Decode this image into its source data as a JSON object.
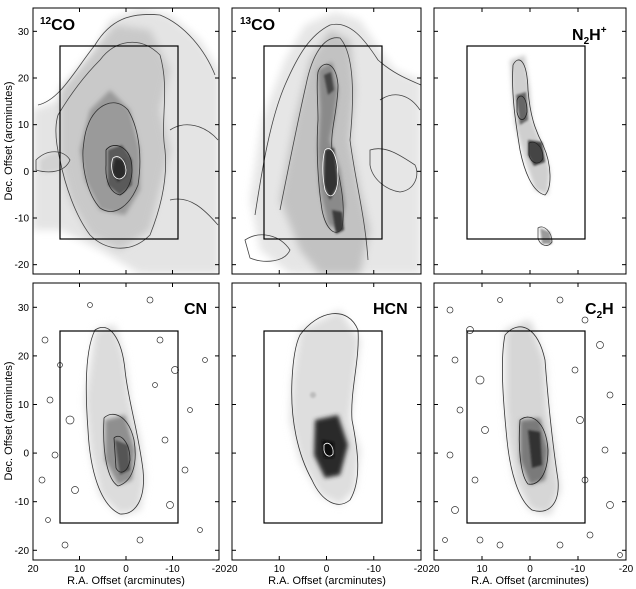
{
  "figure": {
    "panels": [
      {
        "id": "12co",
        "label_prefix": "",
        "label_sup": "12",
        "label_main": "CO",
        "label_sub": "",
        "label_sup_after": ""
      },
      {
        "id": "13co",
        "label_prefix": "",
        "label_sup": "13",
        "label_main": "CO",
        "label_sub": "",
        "label_sup_after": ""
      },
      {
        "id": "n2h",
        "label_prefix": "",
        "label_sup": "",
        "label_main": "N",
        "label_sub": "2",
        "label_tail": "H",
        "label_sup_after": "+"
      },
      {
        "id": "cn",
        "label_prefix": "",
        "label_sup": "",
        "label_main": "CN",
        "label_sub": "",
        "label_sup_after": ""
      },
      {
        "id": "hcn",
        "label_prefix": "",
        "label_sup": "",
        "label_main": "HCN",
        "label_sub": "",
        "label_sup_after": ""
      },
      {
        "id": "c2h",
        "label_prefix": "",
        "label_sup": "",
        "label_main": "C",
        "label_sub": "2",
        "label_tail": "H",
        "label_sup_after": ""
      }
    ],
    "y_axis_label": "Dec. Offset (arcminutes)",
    "x_axis_label": "R.A. Offset (arcminutes)",
    "y_ticks": [
      "30",
      "20",
      "10",
      "0",
      "-10",
      "-20"
    ],
    "x_ticks": [
      "20",
      "10",
      "0",
      "-10",
      "-20"
    ]
  },
  "chart_data": {
    "type": "contour-map-grid",
    "xlim": [
      20,
      -20
    ],
    "ylim": [
      -22,
      35
    ],
    "x_ticks": [
      20,
      10,
      0,
      -10,
      -20
    ],
    "y_ticks": [
      30,
      20,
      10,
      0,
      -10,
      -20
    ],
    "overlay_box": {
      "x": [
        13,
        -11
      ],
      "y": [
        -14.5,
        25.5
      ]
    }
  }
}
